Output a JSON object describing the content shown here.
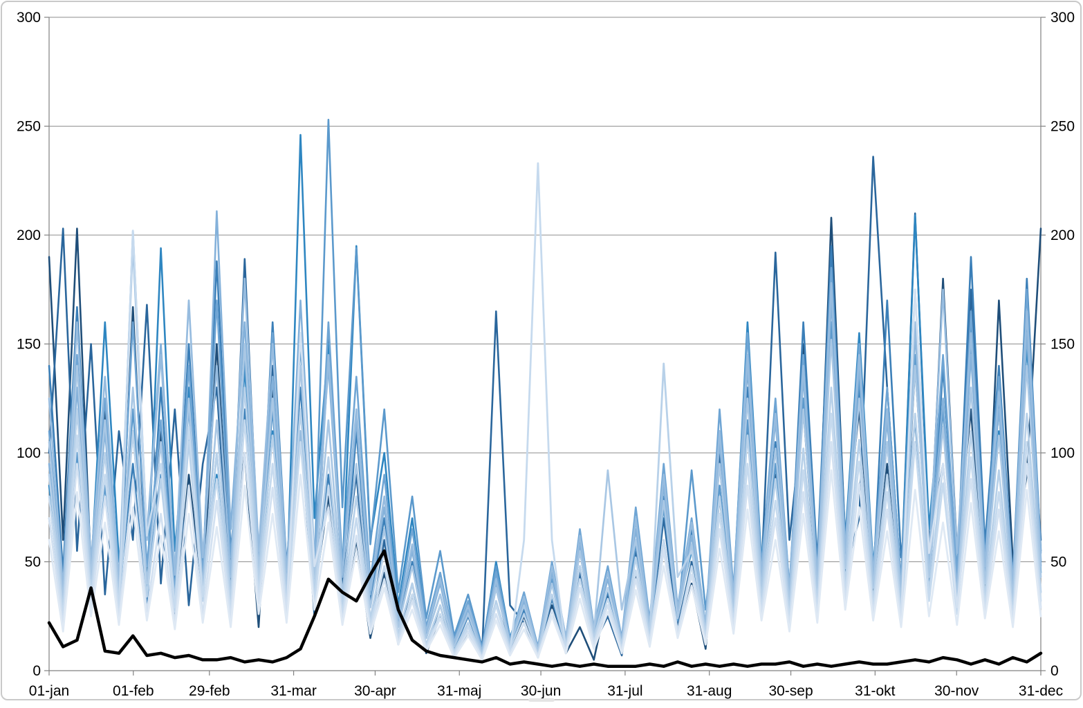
{
  "chart": {
    "background": "#ffffff",
    "axis_color": "#808080",
    "gridline_color": "#8e8e8e",
    "tick_color": "#808080",
    "label_color": "#000000"
  },
  "chart_data": {
    "type": "line",
    "title": "",
    "xlabel": "",
    "ylabel": "",
    "legend": "none",
    "grid": true,
    "y_axis": {
      "min": 0,
      "max": 300,
      "step": 50,
      "tick_labels": [
        "0",
        "50",
        "100",
        "150",
        "200",
        "250",
        "300"
      ],
      "sides": [
        "left",
        "right"
      ]
    },
    "x_axis": {
      "total_days": 365,
      "ticks": [
        {
          "label": "01-jan",
          "day": 0
        },
        {
          "label": "01-feb",
          "day": 31
        },
        {
          "label": "29-feb",
          "day": 59
        },
        {
          "label": "31-mar",
          "day": 90
        },
        {
          "label": "30-apr",
          "day": 120
        },
        {
          "label": "31-maj",
          "day": 151
        },
        {
          "label": "30-jun",
          "day": 181
        },
        {
          "label": "31-jul",
          "day": 212
        },
        {
          "label": "31-aug",
          "day": 243
        },
        {
          "label": "30-sep",
          "day": 273
        },
        {
          "label": "31-okt",
          "day": 304
        },
        {
          "label": "30-nov",
          "day": 334
        },
        {
          "label": "31-dec",
          "day": 365
        }
      ]
    },
    "series": [
      {
        "name": "blue-01",
        "color": "#1f4e79",
        "width": 2.6,
        "values": [
          190,
          60,
          203,
          45,
          120,
          30,
          167,
          40,
          110,
          25,
          90,
          35,
          150,
          45,
          100,
          20,
          130,
          40,
          152,
          35,
          80,
          25,
          60,
          15,
          45,
          12,
          35,
          8,
          25,
          6,
          18,
          5,
          40,
          10,
          25,
          8,
          30,
          8,
          20,
          5,
          35,
          10,
          45,
          12,
          60,
          18,
          40,
          10,
          80,
          20,
          115,
          30,
          90,
          25,
          150,
          40,
          208,
          60,
          120,
          35,
          95,
          25,
          140,
          45,
          180,
          55,
          120,
          30,
          170,
          50,
          90,
          203
        ]
      },
      {
        "name": "blue-02",
        "color": "#2a669c",
        "width": 2.6,
        "values": [
          100,
          203,
          55,
          150,
          35,
          110,
          60,
          168,
          40,
          120,
          30,
          95,
          130,
          35,
          189,
          50,
          140,
          30,
          110,
          25,
          152,
          40,
          90,
          20,
          60,
          15,
          40,
          10,
          30,
          8,
          20,
          8,
          165,
          30,
          22,
          6,
          28,
          8,
          45,
          12,
          25,
          7,
          55,
          15,
          70,
          20,
          50,
          14,
          100,
          30,
          140,
          45,
          192,
          60,
          120,
          35,
          160,
          45,
          70,
          236,
          130,
          40,
          210,
          60,
          95,
          28,
          175,
          50,
          120,
          35,
          150,
          60
        ]
      },
      {
        "name": "blue-03",
        "color": "#2e86c1",
        "width": 2.6,
        "values": [
          85,
          30,
          120,
          45,
          160,
          50,
          110,
          35,
          194,
          55,
          130,
          40,
          90,
          25,
          140,
          35,
          110,
          30,
          246,
          70,
          150,
          45,
          195,
          60,
          100,
          30,
          70,
          20,
          45,
          12,
          30,
          10,
          50,
          15,
          35,
          10,
          40,
          12,
          60,
          18,
          30,
          9,
          70,
          20,
          92,
          28,
          55,
          16,
          110,
          35,
          160,
          50,
          120,
          38,
          140,
          45,
          190,
          60,
          155,
          48,
          120,
          38,
          209,
          65,
          140,
          42,
          160,
          50,
          110,
          35,
          150,
          45
        ]
      },
      {
        "name": "blue-04",
        "color": "#3b7fb8",
        "width": 2.6,
        "values": [
          140,
          45,
          167,
          50,
          115,
          35,
          95,
          28,
          130,
          40,
          150,
          45,
          188,
          55,
          120,
          35,
          160,
          48,
          130,
          40,
          90,
          28,
          110,
          32,
          70,
          20,
          50,
          15,
          35,
          10,
          25,
          8,
          38,
          12,
          28,
          8,
          33,
          10,
          48,
          14,
          36,
          11,
          60,
          18,
          80,
          24,
          65,
          19,
          95,
          28,
          130,
          42,
          105,
          32,
          160,
          50,
          195,
          60,
          130,
          40,
          170,
          52,
          115,
          36,
          140,
          44,
          190,
          58,
          140,
          42,
          180,
          55
        ]
      },
      {
        "name": "blue-05",
        "color": "#5b99cc",
        "width": 2.6,
        "values": [
          70,
          22,
          100,
          32,
          85,
          26,
          120,
          38,
          90,
          28,
          110,
          34,
          100,
          30,
          145,
          44,
          120,
          36,
          150,
          45,
          253,
          75,
          194,
          58,
          120,
          36,
          80,
          24,
          55,
          16,
          35,
          11,
          48,
          15,
          30,
          9,
          42,
          13,
          55,
          17,
          38,
          12,
          58,
          17,
          75,
          23,
          92,
          28,
          85,
          26,
          115,
          36,
          95,
          29,
          125,
          38,
          160,
          50,
          135,
          42,
          105,
          32,
          145,
          45,
          120,
          37,
          150,
          46,
          125,
          38,
          160,
          50
        ]
      },
      {
        "name": "blue-06",
        "color": "#6fa5d4",
        "width": 2.6,
        "values": [
          110,
          34,
          145,
          44,
          125,
          38,
          160,
          48,
          115,
          36,
          140,
          43,
          170,
          52,
          130,
          40,
          155,
          47,
          120,
          37,
          160,
          49,
          135,
          41,
          90,
          27,
          65,
          20,
          45,
          14,
          32,
          10,
          45,
          14,
          36,
          11,
          50,
          15,
          65,
          20,
          48,
          15,
          75,
          23,
          95,
          29,
          70,
          21,
          120,
          37,
          155,
          48,
          125,
          38,
          145,
          44,
          185,
          57,
          150,
          46,
          130,
          40,
          175,
          54,
          145,
          44,
          165,
          51,
          135,
          41,
          175,
          54
        ]
      },
      {
        "name": "blue-07",
        "color": "#84b1da",
        "width": 2.6,
        "values": [
          95,
          29,
          130,
          40,
          110,
          34,
          202,
          62,
          150,
          46,
          120,
          37,
          211,
          65,
          160,
          49,
          135,
          41,
          170,
          52,
          140,
          43,
          115,
          35,
          75,
          23,
          55,
          17,
          40,
          12,
          28,
          9,
          40,
          12,
          32,
          10,
          45,
          14,
          58,
          18,
          42,
          13,
          65,
          20,
          85,
          26,
          62,
          19,
          105,
          32,
          140,
          43,
          115,
          35,
          135,
          41,
          170,
          52,
          140,
          43,
          115,
          35,
          155,
          48,
          125,
          38,
          145,
          44,
          120,
          37,
          155,
          48
        ]
      },
      {
        "name": "blue-08",
        "color": "#97bcdf",
        "width": 2.7,
        "values": [
          125,
          38,
          160,
          49,
          135,
          41,
          196,
          60,
          145,
          44,
          170,
          52,
          140,
          43,
          180,
          55,
          150,
          46,
          110,
          34,
          145,
          44,
          120,
          37,
          80,
          24,
          58,
          18,
          42,
          13,
          30,
          9,
          42,
          13,
          34,
          10,
          48,
          15,
          62,
          19,
          45,
          14,
          70,
          21,
          90,
          28,
          68,
          21,
          110,
          34,
          145,
          44,
          118,
          36,
          140,
          43,
          178,
          55,
          145,
          44,
          120,
          37,
          160,
          49,
          175,
          54,
          155,
          48,
          128,
          39,
          165,
          51
        ]
      },
      {
        "name": "blue-09",
        "color": "#a9c7e4",
        "width": 2.7,
        "values": [
          105,
          32,
          140,
          43,
          115,
          35,
          130,
          40,
          105,
          32,
          125,
          38,
          115,
          35,
          150,
          46,
          125,
          38,
          140,
          43,
          115,
          35,
          95,
          29,
          65,
          20,
          48,
          15,
          35,
          11,
          26,
          8,
          38,
          12,
          30,
          9,
          40,
          12,
          55,
          17,
          92,
          28,
          60,
          18,
          78,
          24,
          58,
          18,
          95,
          29,
          125,
          38,
          102,
          31,
          120,
          37,
          152,
          47,
          125,
          38,
          105,
          32,
          140,
          43,
          112,
          34,
          130,
          40,
          108,
          33,
          140,
          43
        ]
      },
      {
        "name": "blue-10",
        "color": "#b8d1e9",
        "width": 2.8,
        "values": [
          90,
          28,
          120,
          37,
          100,
          31,
          110,
          34,
          88,
          27,
          105,
          32,
          100,
          31,
          130,
          40,
          108,
          33,
          120,
          37,
          98,
          30,
          80,
          24,
          55,
          17,
          40,
          12,
          30,
          9,
          22,
          7,
          32,
          10,
          26,
          8,
          35,
          11,
          48,
          15,
          38,
          12,
          52,
          16,
          141,
          43,
          55,
          17,
          80,
          24,
          108,
          33,
          88,
          27,
          102,
          31,
          130,
          40,
          106,
          32,
          90,
          28,
          118,
          36,
          95,
          29,
          110,
          34,
          92,
          28,
          118,
          36
        ]
      },
      {
        "name": "blue-11",
        "color": "#c6daee",
        "width": 2.8,
        "values": [
          80,
          25,
          108,
          33,
          90,
          28,
          202,
          62,
          95,
          29,
          112,
          34,
          88,
          27,
          115,
          35,
          95,
          29,
          105,
          32,
          85,
          26,
          70,
          21,
          48,
          15,
          35,
          11,
          26,
          8,
          20,
          6,
          30,
          9,
          60,
          233,
          60,
          10,
          42,
          13,
          33,
          10,
          46,
          14,
          60,
          18,
          48,
          15,
          72,
          22,
          95,
          29,
          78,
          24,
          92,
          28,
          118,
          36,
          96,
          29,
          82,
          25,
          105,
          32,
          86,
          26,
          98,
          30,
          82,
          25,
          105,
          32
        ]
      },
      {
        "name": "blue-12",
        "color": "#d3e1f1",
        "width": 2.8,
        "values": [
          70,
          21,
          95,
          29,
          80,
          24,
          88,
          27,
          72,
          22,
          85,
          26,
          78,
          24,
          100,
          31,
          84,
          26,
          155,
          48,
          75,
          23,
          62,
          19,
          42,
          13,
          32,
          10,
          24,
          7,
          18,
          6,
          26,
          8,
          22,
          7,
          28,
          9,
          38,
          12,
          30,
          9,
          42,
          13,
          55,
          17,
          44,
          13,
          65,
          20,
          85,
          26,
          70,
          21,
          82,
          25,
          105,
          32,
          86,
          26,
          74,
          23,
          175,
          54,
          95,
          29,
          88,
          27,
          74,
          23,
          95,
          29
        ]
      },
      {
        "name": "blue-13",
        "color": "#dfe9f4",
        "width": 2.8,
        "values": [
          60,
          18,
          82,
          25,
          68,
          21,
          75,
          23,
          62,
          19,
          72,
          22,
          66,
          20,
          85,
          26,
          72,
          22,
          90,
          28,
          68,
          21,
          55,
          17,
          38,
          12,
          28,
          9,
          21,
          6,
          16,
          5,
          23,
          7,
          19,
          6,
          25,
          8,
          33,
          10,
          27,
          8,
          37,
          11,
          48,
          15,
          39,
          12,
          56,
          17,
          74,
          23,
          60,
          18,
          72,
          22,
          92,
          28,
          75,
          23,
          64,
          20,
          83,
          25,
          68,
          21,
          77,
          24,
          64,
          20,
          83,
          25
        ]
      },
      {
        "name": "highlight-black",
        "color": "#000000",
        "width": 4.5,
        "values": [
          22,
          11,
          14,
          38,
          9,
          8,
          16,
          7,
          8,
          6,
          7,
          5,
          5,
          6,
          4,
          5,
          4,
          6,
          10,
          25,
          42,
          36,
          32,
          44,
          55,
          28,
          14,
          9,
          7,
          6,
          5,
          4,
          6,
          3,
          4,
          3,
          2,
          3,
          2,
          3,
          2,
          2,
          2,
          3,
          2,
          4,
          2,
          3,
          2,
          3,
          2,
          3,
          3,
          4,
          2,
          3,
          2,
          3,
          4,
          3,
          3,
          4,
          5,
          4,
          6,
          5,
          3,
          5,
          3,
          6,
          4,
          8
        ]
      }
    ]
  }
}
